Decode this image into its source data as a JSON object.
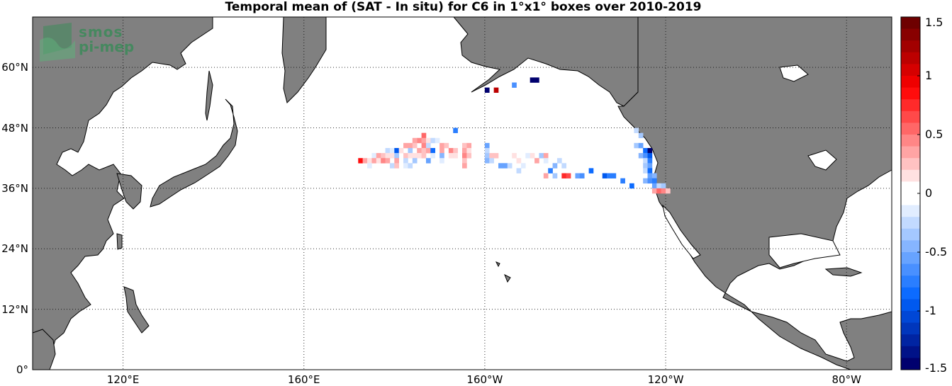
{
  "title": "Temporal mean of (SAT - In situ) for C6 in 1°x1° boxes over 2010-2019",
  "logo": {
    "line1": "smos",
    "line2": "pi-mep"
  },
  "axes": {
    "lat_ticks": [
      {
        "label": "60°N",
        "value": 60
      },
      {
        "label": "48°N",
        "value": 48
      },
      {
        "label": "36°N",
        "value": 36
      },
      {
        "label": "24°N",
        "value": 24
      },
      {
        "label": "12°N",
        "value": 12
      },
      {
        "label": "0°",
        "value": 0
      }
    ],
    "lon_ticks": [
      {
        "label": "120°E",
        "value": 120
      },
      {
        "label": "160°E",
        "value": 160
      },
      {
        "label": "160°W",
        "value": -160
      },
      {
        "label": "120°W",
        "value": -120
      },
      {
        "label": "80°W",
        "value": -80
      }
    ],
    "lon_range": [
      100,
      -70
    ],
    "lat_range": [
      0,
      70
    ]
  },
  "colorbar": {
    "min": -1.5,
    "max": 1.5,
    "ticks": [
      {
        "label": "1.5",
        "value": 1.5
      },
      {
        "label": "1",
        "value": 1
      },
      {
        "label": "0.5",
        "value": 0.5
      },
      {
        "label": "0",
        "value": 0
      },
      {
        "label": "-0.5",
        "value": -0.5
      },
      {
        "label": "-1",
        "value": -1
      },
      {
        "label": "-1.5",
        "value": -1.5
      }
    ],
    "colormap": "blue-white-red"
  },
  "colors": {
    "land": "#808080",
    "ocean": "#ffffff",
    "coast": "#000000"
  },
  "chart_data": {
    "type": "heatmap",
    "cells": [
      {
        "lon": -160,
        "lat": 55,
        "v": -1.5
      },
      {
        "lon": -158,
        "lat": 55,
        "v": 1.2
      },
      {
        "lon": -154,
        "lat": 56,
        "v": -0.6
      },
      {
        "lon": -150,
        "lat": 57,
        "v": -1.5
      },
      {
        "lon": -149,
        "lat": 57,
        "v": -1.5
      },
      {
        "lon": -167,
        "lat": 47,
        "v": -0.7
      },
      {
        "lon": -174,
        "lat": 46,
        "v": 0.5
      },
      {
        "lon": -175,
        "lat": 45,
        "v": 0.4
      },
      {
        "lon": -176,
        "lat": 45,
        "v": 0.3
      },
      {
        "lon": -174,
        "lat": 45,
        "v": 0.3
      },
      {
        "lon": -173,
        "lat": 45,
        "v": 0.1
      },
      {
        "lon": -172,
        "lat": 45,
        "v": -0.2
      },
      {
        "lon": -171,
        "lat": 45,
        "v": -0.1
      },
      {
        "lon": -170,
        "lat": 44,
        "v": 0.3
      },
      {
        "lon": -178,
        "lat": 44,
        "v": 0.3
      },
      {
        "lon": -177,
        "lat": 44,
        "v": 0.3
      },
      {
        "lon": -176,
        "lat": 44,
        "v": 0.2
      },
      {
        "lon": -174,
        "lat": 44,
        "v": 0.4
      },
      {
        "lon": -173,
        "lat": 44,
        "v": -0.2
      },
      {
        "lon": -169,
        "lat": 44,
        "v": 0.2
      },
      {
        "lon": -165,
        "lat": 44,
        "v": 0.2
      },
      {
        "lon": -164,
        "lat": 44,
        "v": 0.3
      },
      {
        "lon": -160,
        "lat": 44,
        "v": -0.5
      },
      {
        "lon": -182,
        "lat": 43,
        "v": -0.2
      },
      {
        "lon": -181,
        "lat": 43,
        "v": -0.1
      },
      {
        "lon": -180,
        "lat": 43,
        "v": -1.0
      },
      {
        "lon": -179,
        "lat": 43,
        "v": 0.1
      },
      {
        "lon": -177,
        "lat": 43,
        "v": -0.3
      },
      {
        "lon": -175,
        "lat": 43,
        "v": 0.3
      },
      {
        "lon": -174,
        "lat": 43,
        "v": 0.2
      },
      {
        "lon": -173,
        "lat": 43,
        "v": 0.3
      },
      {
        "lon": -172,
        "lat": 43,
        "v": -0.9
      },
      {
        "lon": -170,
        "lat": 43,
        "v": 0.3
      },
      {
        "lon": -168,
        "lat": 43,
        "v": 0.4
      },
      {
        "lon": -167,
        "lat": 43,
        "v": 0.2
      },
      {
        "lon": -165,
        "lat": 43,
        "v": 0.3
      },
      {
        "lon": -164,
        "lat": 43,
        "v": 0.1
      },
      {
        "lon": -160,
        "lat": 43,
        "v": -0.2
      },
      {
        "lon": -185,
        "lat": 42,
        "v": -0.1
      },
      {
        "lon": -184,
        "lat": 42,
        "v": 0.3
      },
      {
        "lon": -183,
        "lat": 42,
        "v": 0.2
      },
      {
        "lon": -182,
        "lat": 42,
        "v": 0.1
      },
      {
        "lon": -181,
        "lat": 42,
        "v": 0.1
      },
      {
        "lon": -180,
        "lat": 42,
        "v": -0.3
      },
      {
        "lon": -178,
        "lat": 42,
        "v": 0.2
      },
      {
        "lon": -177,
        "lat": 42,
        "v": 0.1
      },
      {
        "lon": -176,
        "lat": 42,
        "v": 0.1
      },
      {
        "lon": -175,
        "lat": 42,
        "v": 0.1
      },
      {
        "lon": -174,
        "lat": 42,
        "v": 0.2
      },
      {
        "lon": -172,
        "lat": 42,
        "v": -0.1
      },
      {
        "lon": -170,
        "lat": 42,
        "v": -0.4
      },
      {
        "lon": -168,
        "lat": 42,
        "v": 0.1
      },
      {
        "lon": -167,
        "lat": 42,
        "v": 0.1
      },
      {
        "lon": -165,
        "lat": 42,
        "v": 0.4
      },
      {
        "lon": -164,
        "lat": 42,
        "v": 0.2
      },
      {
        "lon": -160,
        "lat": 42,
        "v": -0.3
      },
      {
        "lon": -159,
        "lat": 42,
        "v": 0.2
      },
      {
        "lon": -158,
        "lat": 42,
        "v": 0.2
      },
      {
        "lon": -154,
        "lat": 42,
        "v": 0.1
      },
      {
        "lon": -151,
        "lat": 42,
        "v": -0.1
      },
      {
        "lon": -150,
        "lat": 42,
        "v": 0.1
      },
      {
        "lon": -148,
        "lat": 42,
        "v": -0.3
      },
      {
        "lon": -147,
        "lat": 42,
        "v": 0.3
      },
      {
        "lon": -188,
        "lat": 41,
        "v": 0.9
      },
      {
        "lon": -187,
        "lat": 41,
        "v": 0.3
      },
      {
        "lon": -186,
        "lat": 41,
        "v": 0.1
      },
      {
        "lon": -185,
        "lat": 41,
        "v": 0.3
      },
      {
        "lon": -184,
        "lat": 41,
        "v": 0.1
      },
      {
        "lon": -183,
        "lat": 41,
        "v": 0.4
      },
      {
        "lon": -182,
        "lat": 41,
        "v": 0.3
      },
      {
        "lon": -180,
        "lat": 41,
        "v": 0.3
      },
      {
        "lon": -178,
        "lat": 41,
        "v": -0.2
      },
      {
        "lon": -176,
        "lat": 41,
        "v": -0.3
      },
      {
        "lon": -173,
        "lat": 41,
        "v": -0.5
      },
      {
        "lon": -170,
        "lat": 41,
        "v": -0.1
      },
      {
        "lon": -165,
        "lat": 41,
        "v": 0.2
      },
      {
        "lon": -160,
        "lat": 41,
        "v": -0.4
      },
      {
        "lon": -159,
        "lat": 41,
        "v": -0.2
      },
      {
        "lon": -153,
        "lat": 41,
        "v": 0.1
      },
      {
        "lon": -149,
        "lat": 41,
        "v": 0.3
      },
      {
        "lon": -147,
        "lat": 41,
        "v": -0.1
      },
      {
        "lon": -144,
        "lat": 41,
        "v": -0.2
      },
      {
        "lon": -186,
        "lat": 40,
        "v": -0.1
      },
      {
        "lon": -181,
        "lat": 40,
        "v": -0.2
      },
      {
        "lon": -180,
        "lat": 40,
        "v": 0.2
      },
      {
        "lon": -178,
        "lat": 40,
        "v": -0.1
      },
      {
        "lon": -177,
        "lat": 40,
        "v": -0.2
      },
      {
        "lon": -165,
        "lat": 40,
        "v": 0.3
      },
      {
        "lon": -157,
        "lat": 40,
        "v": -0.5
      },
      {
        "lon": -156,
        "lat": 40,
        "v": -0.5
      },
      {
        "lon": -155,
        "lat": 40,
        "v": -0.2
      },
      {
        "lon": -152,
        "lat": 40,
        "v": -0.1
      },
      {
        "lon": -145,
        "lat": 40,
        "v": -0.4
      },
      {
        "lon": -143,
        "lat": 40,
        "v": -0.2
      },
      {
        "lon": -153,
        "lat": 39,
        "v": -0.2
      },
      {
        "lon": -146,
        "lat": 39,
        "v": -0.7
      },
      {
        "lon": -147,
        "lat": 38,
        "v": 0.3
      },
      {
        "lon": -145,
        "lat": 38,
        "v": -0.3
      },
      {
        "lon": -143,
        "lat": 38,
        "v": 0.8
      },
      {
        "lon": -142,
        "lat": 38,
        "v": 0.6
      },
      {
        "lon": -140,
        "lat": 38,
        "v": -0.5
      },
      {
        "lon": -139,
        "lat": 38,
        "v": -0.6
      },
      {
        "lon": -137,
        "lat": 39,
        "v": -0.9
      },
      {
        "lon": -134,
        "lat": 38,
        "v": -1.0
      },
      {
        "lon": -133,
        "lat": 38,
        "v": -0.8
      },
      {
        "lon": -132,
        "lat": 38,
        "v": -0.7
      },
      {
        "lon": -130,
        "lat": 37,
        "v": -0.8
      },
      {
        "lon": -128,
        "lat": 36,
        "v": -0.9
      },
      {
        "lon": -127,
        "lat": 47,
        "v": -0.2
      },
      {
        "lon": -126,
        "lat": 46,
        "v": -0.3
      },
      {
        "lon": -127,
        "lat": 44,
        "v": -0.3
      },
      {
        "lon": -126,
        "lat": 44,
        "v": -0.5
      },
      {
        "lon": -125,
        "lat": 43,
        "v": -0.9
      },
      {
        "lon": -124,
        "lat": 43,
        "v": -1.5
      },
      {
        "lon": -126,
        "lat": 42,
        "v": -0.4
      },
      {
        "lon": -125,
        "lat": 42,
        "v": -0.6
      },
      {
        "lon": -124,
        "lat": 42,
        "v": -1.0
      },
      {
        "lon": -125,
        "lat": 41,
        "v": -0.2
      },
      {
        "lon": -124,
        "lat": 41,
        "v": -0.7
      },
      {
        "lon": -125,
        "lat": 40,
        "v": -0.3
      },
      {
        "lon": -124,
        "lat": 40,
        "v": -0.5
      },
      {
        "lon": -125,
        "lat": 39,
        "v": -0.2
      },
      {
        "lon": -124,
        "lat": 39,
        "v": -0.9
      },
      {
        "lon": -124,
        "lat": 38,
        "v": -0.5
      },
      {
        "lon": -123,
        "lat": 38,
        "v": -0.4
      },
      {
        "lon": -125,
        "lat": 37,
        "v": -0.4
      },
      {
        "lon": -124,
        "lat": 37,
        "v": -0.6
      },
      {
        "lon": -123,
        "lat": 37,
        "v": -0.8
      },
      {
        "lon": -123,
        "lat": 36,
        "v": -0.5
      },
      {
        "lon": -122,
        "lat": 36,
        "v": -0.2
      },
      {
        "lon": -121,
        "lat": 36,
        "v": -0.3
      },
      {
        "lon": -123,
        "lat": 35,
        "v": 0.3
      },
      {
        "lon": -122,
        "lat": 35,
        "v": 0.5
      },
      {
        "lon": -121,
        "lat": 35,
        "v": 0.4
      },
      {
        "lon": -120,
        "lat": 35,
        "v": 0.2
      }
    ]
  }
}
